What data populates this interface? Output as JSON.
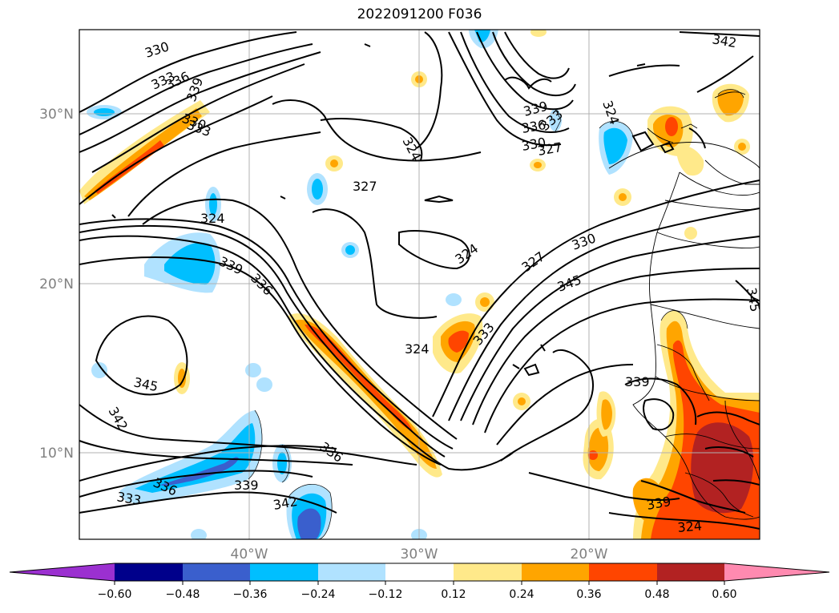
{
  "title": "2022091200 F036",
  "map": {
    "lat_ticks": [
      "30°N",
      "20°N",
      "10°N"
    ],
    "lon_ticks": [
      "40°W",
      "30°W",
      "20°W"
    ],
    "contour_labels": [
      "330",
      "333",
      "336",
      "339",
      "330",
      "333",
      "324",
      "327",
      "339",
      "336",
      "333",
      "330",
      "327",
      "324",
      "324",
      "324",
      "339",
      "336",
      "327",
      "330",
      "345",
      "324",
      "333",
      "345",
      "345",
      "339",
      "342",
      "336",
      "333",
      "339",
      "336",
      "342",
      "339",
      "324",
      "342",
      "339",
      "324"
    ],
    "palette": {
      "purple": "#9b30d0",
      "navy": "#00008b",
      "royal": "#3a5fcd",
      "deepsky": "#00bfff",
      "lightsky": "#b0e2ff",
      "white": "#ffffff",
      "lightyellow": "#ffe98a",
      "orange": "#ffa500",
      "orangered": "#ff4500",
      "firebrick": "#b22222",
      "pink": "#ff8ab0"
    }
  },
  "colorbar": {
    "ticks": [
      "−0.60",
      "−0.48",
      "−0.36",
      "−0.24",
      "−0.12",
      "0.12",
      "0.24",
      "0.36",
      "0.48",
      "0.60"
    ]
  }
}
